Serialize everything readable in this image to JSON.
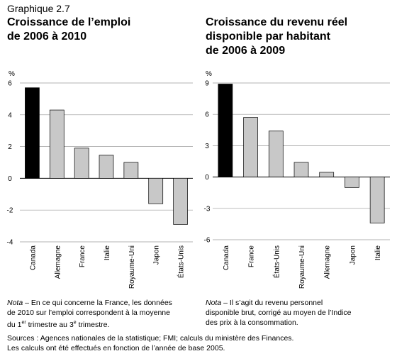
{
  "figure_label": "Graphique 2.7",
  "chart_data": [
    {
      "type": "bar",
      "title": "Croissance de l’emploi de 2006 à 2010",
      "title_lines": [
        "Croissance de l’emploi",
        "de 2006 à 2010"
      ],
      "unit_label": "%",
      "categories": [
        "Canada",
        "Allemagne",
        "France",
        "Italie",
        "Royaume-Uni",
        "Japon",
        "États-Unis"
      ],
      "values": [
        5.7,
        4.3,
        1.9,
        1.45,
        1.0,
        -1.6,
        -2.9
      ],
      "ylim": [
        -4,
        6
      ],
      "yticks": [
        -4,
        -2,
        0,
        2,
        4,
        6
      ],
      "ytick_labels": [
        "-4",
        "-2",
        "0",
        "2",
        "4",
        "6"
      ],
      "grid": true,
      "highlight_color": "#000000",
      "bar_color": "#c8c8c8"
    },
    {
      "type": "bar",
      "title": "Croissance du revenu réel disponible par habitant de 2006 à 2009",
      "title_lines": [
        "Croissance du revenu réel",
        "disponible par habitant",
        "de 2006 à 2009"
      ],
      "unit_label": "%",
      "categories": [
        "Canada",
        "France",
        "États-Unis",
        "Royaume-Uni",
        "Allemagne",
        "Japon",
        "Italie"
      ],
      "values": [
        8.9,
        5.7,
        4.4,
        1.4,
        0.45,
        -1.0,
        -4.4
      ],
      "ylim": [
        -6,
        9
      ],
      "yticks": [
        -6,
        -3,
        0,
        3,
        6,
        9
      ],
      "ytick_labels": [
        "-6",
        "-3",
        "0",
        "3",
        "6",
        "9"
      ],
      "grid": true,
      "highlight_color": "#000000",
      "bar_color": "#c8c8c8"
    }
  ],
  "notes": {
    "left": {
      "lead": "Nota",
      "lines": [
        "– En ce qui concerne la France, les données",
        "de 2010 sur l’emploi  correspondent à la moyenne",
        "du 1er trimestre au 3e trimestre."
      ]
    },
    "right": {
      "lead": "Nota",
      "lines": [
        "– Il s’agit du revenu personnel",
        "disponible brut, corrigé au moyen de l’Indice",
        "des prix à la consommation."
      ]
    }
  },
  "sources": {
    "line1": "Sources : Agences nationales de la statistique; FMI; calculs du ministère des Finances.",
    "line2": "Les calculs ont été effectués en fonction de l’année de base 2005."
  }
}
